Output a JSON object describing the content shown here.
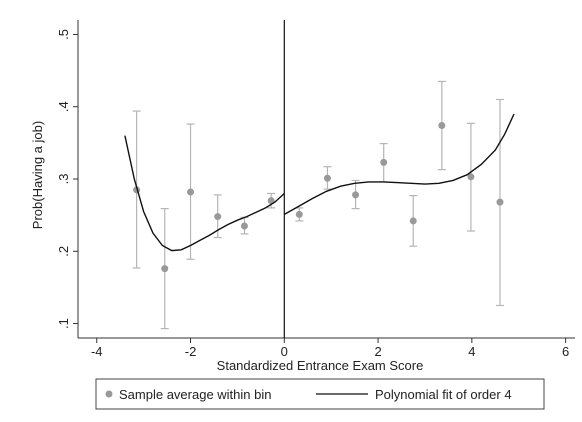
{
  "chart_data": {
    "type": "scatter",
    "title": "",
    "xlabel": "Standardized Entrance Exam Score",
    "ylabel": "Prob(Having a job)",
    "xlim": [
      -4.4,
      6.2
    ],
    "ylim": [
      0.08,
      0.52
    ],
    "xticks": [
      -4,
      -2,
      0,
      2,
      4,
      6
    ],
    "xtick_labels": [
      "-4",
      "-2",
      "0",
      "2",
      "4",
      "6"
    ],
    "yticks": [
      0.1,
      0.2,
      0.3,
      0.4,
      0.5
    ],
    "ytick_labels": [
      ".1",
      ".2",
      ".3",
      ".4",
      ".5"
    ],
    "cutoff_x": 0,
    "grid": false,
    "legend_position": "bottom",
    "series": [
      {
        "name": "Sample average within bin",
        "kind": "points_with_ci",
        "color": "#999999",
        "points": [
          {
            "x": -3.15,
            "y": 0.285,
            "lo": 0.177,
            "hi": 0.394
          },
          {
            "x": -2.55,
            "y": 0.176,
            "lo": 0.093,
            "hi": 0.259
          },
          {
            "x": -2.0,
            "y": 0.282,
            "lo": 0.189,
            "hi": 0.376
          },
          {
            "x": -1.42,
            "y": 0.248,
            "lo": 0.219,
            "hi": 0.278
          },
          {
            "x": -0.85,
            "y": 0.235,
            "lo": 0.224,
            "hi": 0.247
          },
          {
            "x": -0.28,
            "y": 0.27,
            "lo": 0.26,
            "hi": 0.28
          },
          {
            "x": 0.32,
            "y": 0.251,
            "lo": 0.242,
            "hi": 0.26
          },
          {
            "x": 0.92,
            "y": 0.301,
            "lo": 0.286,
            "hi": 0.317
          },
          {
            "x": 1.52,
            "y": 0.278,
            "lo": 0.259,
            "hi": 0.298
          },
          {
            "x": 2.12,
            "y": 0.323,
            "lo": 0.296,
            "hi": 0.349
          },
          {
            "x": 2.75,
            "y": 0.242,
            "lo": 0.207,
            "hi": 0.277
          },
          {
            "x": 3.36,
            "y": 0.374,
            "lo": 0.313,
            "hi": 0.435
          },
          {
            "x": 3.98,
            "y": 0.303,
            "lo": 0.228,
            "hi": 0.377
          },
          {
            "x": 4.6,
            "y": 0.268,
            "lo": 0.125,
            "hi": 0.41
          }
        ]
      },
      {
        "name": "Polynomial fit of order 4",
        "kind": "line",
        "color": "#111111",
        "segments": [
          [
            {
              "x": -3.4,
              "y": 0.36
            },
            {
              "x": -3.2,
              "y": 0.3
            },
            {
              "x": -3.0,
              "y": 0.255
            },
            {
              "x": -2.8,
              "y": 0.225
            },
            {
              "x": -2.6,
              "y": 0.208
            },
            {
              "x": -2.4,
              "y": 0.201
            },
            {
              "x": -2.2,
              "y": 0.202
            },
            {
              "x": -2.0,
              "y": 0.208
            },
            {
              "x": -1.8,
              "y": 0.215
            },
            {
              "x": -1.6,
              "y": 0.222
            },
            {
              "x": -1.4,
              "y": 0.23
            },
            {
              "x": -1.2,
              "y": 0.237
            },
            {
              "x": -1.0,
              "y": 0.243
            },
            {
              "x": -0.8,
              "y": 0.248
            },
            {
              "x": -0.6,
              "y": 0.254
            },
            {
              "x": -0.4,
              "y": 0.26
            },
            {
              "x": -0.2,
              "y": 0.268
            },
            {
              "x": 0.0,
              "y": 0.28
            }
          ],
          [
            {
              "x": 0.0,
              "y": 0.251
            },
            {
              "x": 0.3,
              "y": 0.262
            },
            {
              "x": 0.6,
              "y": 0.273
            },
            {
              "x": 0.9,
              "y": 0.283
            },
            {
              "x": 1.2,
              "y": 0.29
            },
            {
              "x": 1.5,
              "y": 0.294
            },
            {
              "x": 1.8,
              "y": 0.296
            },
            {
              "x": 2.1,
              "y": 0.296
            },
            {
              "x": 2.4,
              "y": 0.295
            },
            {
              "x": 2.7,
              "y": 0.294
            },
            {
              "x": 3.0,
              "y": 0.293
            },
            {
              "x": 3.3,
              "y": 0.294
            },
            {
              "x": 3.6,
              "y": 0.298
            },
            {
              "x": 3.9,
              "y": 0.306
            },
            {
              "x": 4.2,
              "y": 0.32
            },
            {
              "x": 4.5,
              "y": 0.34
            },
            {
              "x": 4.7,
              "y": 0.362
            },
            {
              "x": 4.9,
              "y": 0.39
            }
          ]
        ]
      }
    ]
  }
}
